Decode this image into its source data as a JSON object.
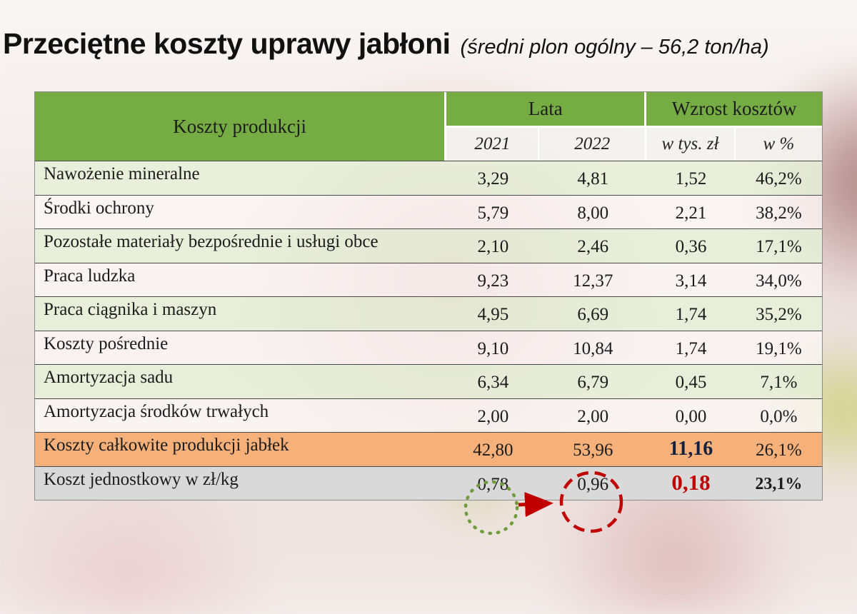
{
  "slide": {
    "title": "Przeciętne koszty uprawy jabłoni",
    "subtitle": "(średni plon ogólny – 56,2 ton/ha)"
  },
  "chart_data": {
    "type": "table",
    "title": "Przeciętne koszty uprawy jabłoni (średni plon ogólny – 56,2 ton/ha)",
    "header": {
      "label_col": "Koszty produkcji",
      "years_group": "Lata",
      "increase_group": "Wzrost kosztów",
      "subcolumns": [
        "2021",
        "2022",
        "w tys. zł",
        "w %"
      ]
    },
    "rows": [
      {
        "label": "Nawożenie mineralne",
        "values": [
          "3,29",
          "4,81",
          "1,52",
          "46,2%"
        ],
        "variant": "green"
      },
      {
        "label": "Środki ochrony",
        "values": [
          "5,79",
          "8,00",
          "2,21",
          "38,2%"
        ],
        "variant": "white"
      },
      {
        "label": "Pozostałe materiały bezpośrednie i usługi obce",
        "values": [
          "2,10",
          "2,46",
          "0,36",
          "17,1%"
        ],
        "variant": "green"
      },
      {
        "label": "Praca ludzka",
        "values": [
          "9,23",
          "12,37",
          "3,14",
          "34,0%"
        ],
        "variant": "white"
      },
      {
        "label": "Praca ciągnika i maszyn",
        "values": [
          "4,95",
          "6,69",
          "1,74",
          "35,2%"
        ],
        "variant": "green"
      },
      {
        "label": "Koszty pośrednie",
        "values": [
          "9,10",
          "10,84",
          "1,74",
          "19,1%"
        ],
        "variant": "white"
      },
      {
        "label": "Amortyzacja sadu",
        "values": [
          "6,34",
          "6,79",
          "0,45",
          "7,1%"
        ],
        "variant": "green"
      },
      {
        "label": "Amortyzacja środków trwałych",
        "values": [
          "2,00",
          "2,00",
          "0,00",
          "0,0%"
        ],
        "variant": "white"
      },
      {
        "label": "Koszty całkowite produkcji jabłek",
        "values": [
          "42,80",
          "53,96",
          "11,16",
          "26,1%"
        ],
        "variant": "orange",
        "value_styles": [
          "",
          "",
          "total-bold",
          ""
        ]
      },
      {
        "label": "Koszt jednostkowy w zł/kg",
        "values": [
          "0,78",
          "0,96",
          "0,18",
          "23,1%"
        ],
        "variant": "gray",
        "value_styles": [
          "",
          "",
          "red-bold",
          "pct-bold"
        ]
      }
    ]
  },
  "annotations": {
    "circle_2021": "dotted-green-circle",
    "circle_2022": "dashed-red-circle",
    "arrow": "red-arrow-right"
  },
  "colors": {
    "header_green": "#76AC44",
    "total_row_orange": "#F6B17A",
    "unit_row_gray": "#D9D9D9",
    "accent_red": "#C00000",
    "circle_green": "#6F9B3D"
  }
}
